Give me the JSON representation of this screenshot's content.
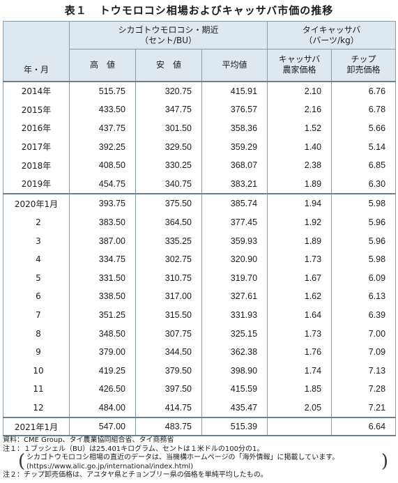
{
  "title": {
    "number": "表１",
    "text": "トウモロコシ相場およびキャッサバ市価の推移"
  },
  "header": {
    "corner": "年・月",
    "corn_group": [
      "シカゴトウモロコシ・期近",
      "（セント/BU）"
    ],
    "cassava_group": [
      "タイキャッサバ",
      "（バーツ/kg）"
    ],
    "cols": {
      "high": "高　値",
      "low": "安　値",
      "avg": "平均値",
      "farm": [
        "キャッサバ",
        "農家価格"
      ],
      "chip": [
        "チップ",
        "卸売価格"
      ]
    }
  },
  "rows": [
    {
      "label": "2014年",
      "high": "515.75",
      "low": "320.75",
      "avg": "415.91",
      "farm": "2.10",
      "chip": "6.76"
    },
    {
      "label": "2015年",
      "high": "433.50",
      "low": "347.75",
      "avg": "376.57",
      "farm": "2.16",
      "chip": "6.78"
    },
    {
      "label": "2016年",
      "high": "437.75",
      "low": "301.50",
      "avg": "358.36",
      "farm": "1.52",
      "chip": "5.66"
    },
    {
      "label": "2017年",
      "high": "392.25",
      "low": "329.50",
      "avg": "359.29",
      "farm": "1.40",
      "chip": "5.14"
    },
    {
      "label": "2018年",
      "high": "408.50",
      "low": "330.25",
      "avg": "368.07",
      "farm": "2.38",
      "chip": "6.85"
    },
    {
      "label": "2019年",
      "high": "454.75",
      "low": "340.75",
      "avg": "383.21",
      "farm": "1.89",
      "chip": "6.30"
    },
    {
      "label": "2020年1月",
      "high": "393.75",
      "low": "375.50",
      "avg": "385.74",
      "farm": "1.94",
      "chip": "5.98"
    },
    {
      "label": "2",
      "high": "383.50",
      "low": "364.50",
      "avg": "377.45",
      "farm": "1.92",
      "chip": "5.96"
    },
    {
      "label": "3",
      "high": "387.00",
      "low": "335.25",
      "avg": "359.93",
      "farm": "1.89",
      "chip": "5.96"
    },
    {
      "label": "4",
      "high": "334.75",
      "low": "302.75",
      "avg": "320.90",
      "farm": "1.73",
      "chip": "5.98"
    },
    {
      "label": "5",
      "high": "331.50",
      "low": "310.75",
      "avg": "319.70",
      "farm": "1.67",
      "chip": "6.09"
    },
    {
      "label": "6",
      "high": "338.50",
      "low": "317.00",
      "avg": "327.61",
      "farm": "1.62",
      "chip": "6.13"
    },
    {
      "label": "7",
      "high": "351.25",
      "low": "315.50",
      "avg": "331.93",
      "farm": "1.64",
      "chip": "6.39"
    },
    {
      "label": "8",
      "high": "348.50",
      "low": "307.75",
      "avg": "325.15",
      "farm": "1.73",
      "chip": "7.00"
    },
    {
      "label": "9",
      "high": "379.00",
      "low": "344.50",
      "avg": "362.38",
      "farm": "1.76",
      "chip": "7.09"
    },
    {
      "label": "10",
      "high": "419.25",
      "low": "379.50",
      "avg": "398.90",
      "farm": "1.74",
      "chip": "7.13"
    },
    {
      "label": "11",
      "high": "426.50",
      "low": "397.50",
      "avg": "415.59",
      "farm": "1.85",
      "chip": "7.28"
    },
    {
      "label": "12",
      "high": "484.00",
      "low": "414.75",
      "avg": "435.47",
      "farm": "2.05",
      "chip": "7.21"
    },
    {
      "label": "2021年1月",
      "high": "547.00",
      "low": "483.75",
      "avg": "515.39",
      "farm": "",
      "chip": "6.64"
    }
  ],
  "notes": {
    "source": "資料：CME Group、タイ農業協同組合省、タイ商務省",
    "note1": "注１：１ブッシェル（BU）は25.401キログラム、セントは１米ドルの100分の1。",
    "note1_sub1": "シカゴトウモロコシ相場の直近のデータは、当機構ホームページの「海外情報」に掲載しています。",
    "note1_sub2": "(https://www.alic.go.jp/international/index.html)",
    "note2": "注２：チップ卸売価格は、アユタヤ県とチョンブリー県の価格を単純平均したもの。"
  }
}
